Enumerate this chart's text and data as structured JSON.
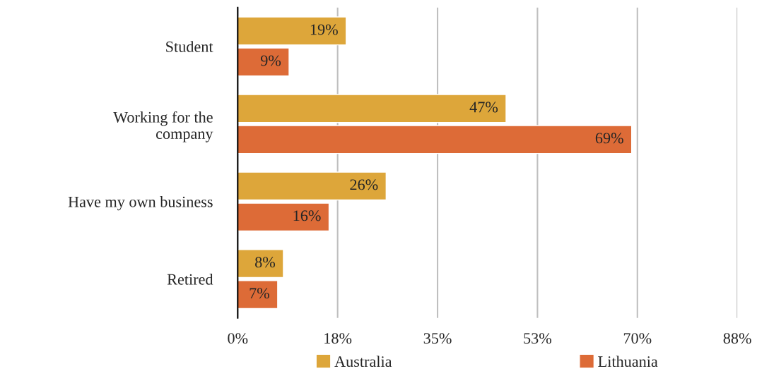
{
  "chart_data": {
    "type": "bar",
    "orientation": "horizontal",
    "categories": [
      "Student",
      "Working for the\ncompany",
      "Have my own business",
      "Retired"
    ],
    "series": [
      {
        "name": "Australia",
        "color": "#dda63a",
        "values": [
          19,
          47,
          26,
          8
        ],
        "value_labels": [
          "19%",
          "47%",
          "26%",
          "8%"
        ]
      },
      {
        "name": "Lithuania",
        "color": "#dd6b37",
        "values": [
          9,
          69,
          16,
          7
        ],
        "value_labels": [
          "9%",
          "69%",
          "16%",
          "7%"
        ]
      }
    ],
    "xlim": [
      0,
      87.5
    ],
    "xticks": [
      {
        "value": 0,
        "label": "0%"
      },
      {
        "value": 17.5,
        "label": "18%"
      },
      {
        "value": 35,
        "label": "35%"
      },
      {
        "value": 52.5,
        "label": "53%"
      },
      {
        "value": 70,
        "label": "70%"
      },
      {
        "value": 87.5,
        "label": "88%"
      }
    ],
    "grid": "x",
    "legend": "bottom"
  }
}
